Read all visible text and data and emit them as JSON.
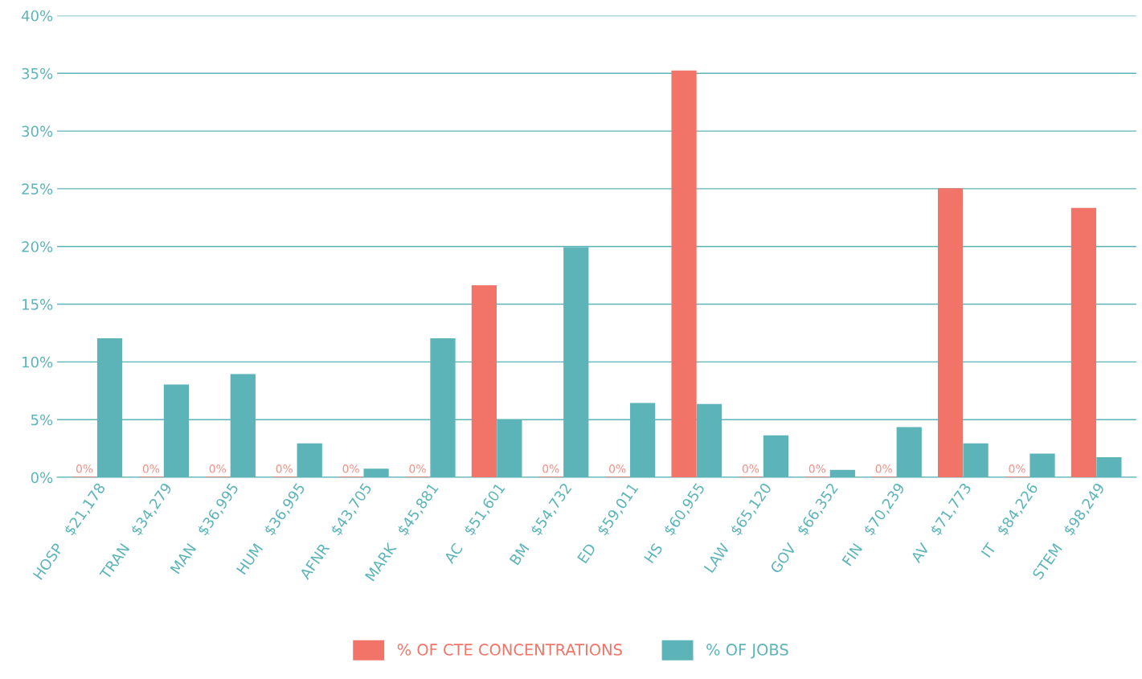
{
  "chart_data": {
    "type": "bar",
    "categories": [
      "HOSP   $21,178",
      "TRAN   $34,279",
      "MAN   $36,995",
      "HUM   $36,995",
      "AFNR   $43,705",
      "MARK   $45,881",
      "AC   $51,601",
      "BM   $54,732",
      "ED   $59,011",
      "HS   $60,955",
      "LAW   $65,120",
      "GOV   $66,352",
      "FIN   $70,239",
      "AV   $71,773",
      "IT   $84,226",
      "STEM   $98,249"
    ],
    "series": [
      {
        "name": "% OF CTE CONCENTRATIONS",
        "color": "#f27468",
        "values": [
          0,
          0,
          0,
          0,
          0,
          0,
          16.6,
          0,
          0,
          35.2,
          0,
          0,
          0,
          25.0,
          0,
          23.3
        ],
        "value_labels": [
          "0%",
          "0%",
          "0%",
          "0%",
          "0%",
          "0%",
          null,
          "0%",
          "0%",
          null,
          "0%",
          "0%",
          "0%",
          null,
          "0%",
          null
        ]
      },
      {
        "name": "% OF JOBS",
        "color": "#5cb4b9",
        "values": [
          12.0,
          8.0,
          8.9,
          2.9,
          0.7,
          12.0,
          4.9,
          19.9,
          6.4,
          6.3,
          3.6,
          0.6,
          4.3,
          2.9,
          2.0,
          1.7
        ]
      }
    ],
    "ylim": [
      0,
      40
    ],
    "yticks": [
      {
        "value": 0,
        "label": "0%"
      },
      {
        "value": 5,
        "label": "5%"
      },
      {
        "value": 10,
        "label": "10%"
      },
      {
        "value": 15,
        "label": "15%"
      },
      {
        "value": 20,
        "label": "20%"
      },
      {
        "value": 25,
        "label": "25%"
      },
      {
        "value": 30,
        "label": "30%"
      },
      {
        "value": 35,
        "label": "35%"
      },
      {
        "value": 40,
        "label": "40%"
      }
    ],
    "grid": "y",
    "legend": "bottom"
  }
}
